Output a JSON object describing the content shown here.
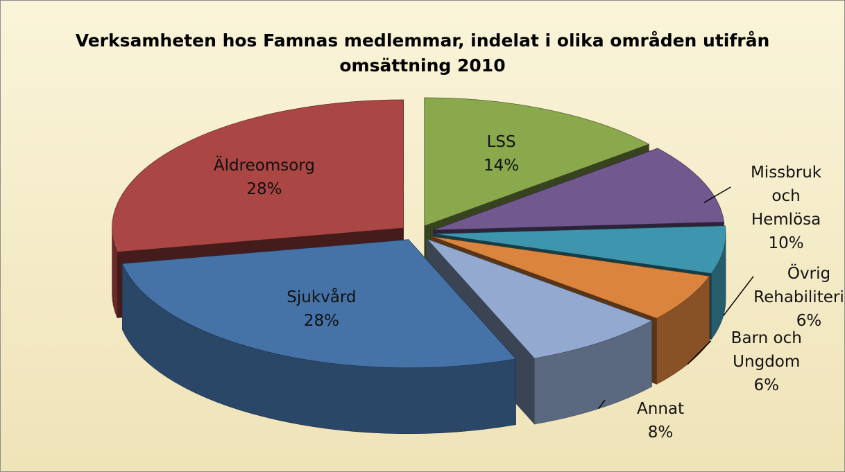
{
  "chart_data": {
    "type": "pie",
    "title": "Verksamheten hos Famnas medlemmar, indelat i olika områden utifrån omsättning 2010",
    "categories": [
      "LSS",
      "Missbruk och Hemlösa",
      "Övrig Rehabilitering",
      "Barn och Ungdom",
      "Annat",
      "Sjukvård",
      "Äldreomsorg"
    ],
    "values": [
      14,
      10,
      6,
      6,
      8,
      28,
      28
    ],
    "value_labels": [
      "14%",
      "10%",
      "6%",
      "6%",
      "8%",
      "28%",
      "28%"
    ],
    "colors": [
      "#8aa84c",
      "#71588f",
      "#3d96ae",
      "#db843d",
      "#93a9cf",
      "#4572a7",
      "#aa4643"
    ]
  }
}
